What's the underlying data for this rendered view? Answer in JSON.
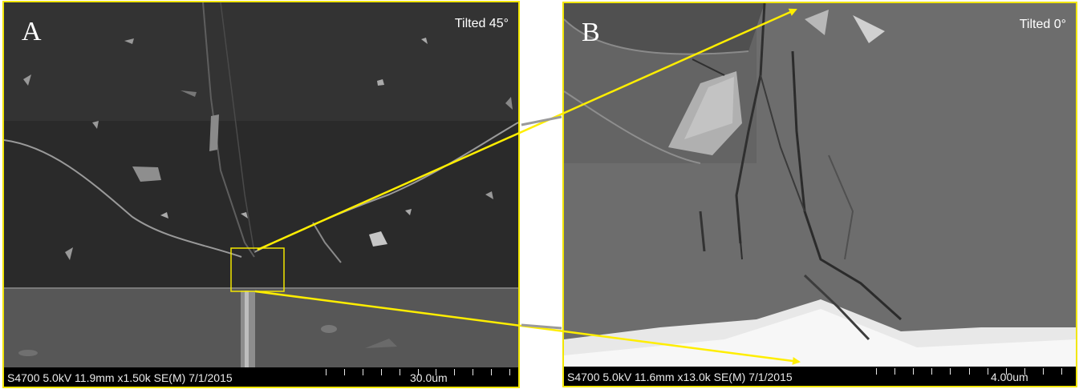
{
  "panel_a": {
    "letter": "A",
    "tilt": "Tilted 45°",
    "info": "S4700 5.0kV 11.9mm x1.50k SE(M) 7/1/2015",
    "scale": "30.0um"
  },
  "panel_b": {
    "letter": "B",
    "tilt": "Tilted 0°",
    "info": "S4700 5.0kV 11.6mm x13.0k SE(M) 7/1/2015",
    "scale": "4.00um"
  },
  "colors": {
    "frame": "#f2e600",
    "arrow": "#ffee00",
    "databar": "#000000",
    "label": "#ffffff"
  }
}
